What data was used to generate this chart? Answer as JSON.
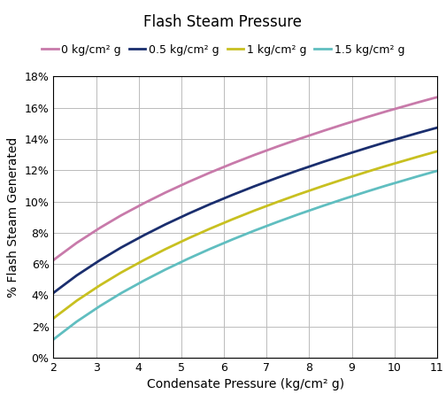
{
  "title": "Flash Steam Pressure",
  "xlabel": "Condensate Pressure (kg/cm² g)",
  "ylabel": "% Flash Steam Generated",
  "xlim": [
    2,
    11
  ],
  "ylim": [
    0,
    0.18
  ],
  "xticks": [
    2,
    3,
    4,
    5,
    6,
    7,
    8,
    9,
    10,
    11
  ],
  "yticks": [
    0.0,
    0.02,
    0.04,
    0.06,
    0.08,
    0.1,
    0.12,
    0.14,
    0.16,
    0.18
  ],
  "ytick_labels": [
    "0%",
    "2%",
    "4%",
    "6%",
    "8%",
    "10%",
    "12%",
    "14%",
    "16%",
    "18%"
  ],
  "series": [
    {
      "label": "0 kg/cm² g",
      "color": "#c87aaa",
      "flash_pressure_kgcm2g": 0.0
    },
    {
      "label": "0.5 kg/cm² g",
      "color": "#1a2e6e",
      "flash_pressure_kgcm2g": 0.5
    },
    {
      "label": "1 kg/cm² g",
      "color": "#c8c020",
      "flash_pressure_kgcm2g": 1.0
    },
    {
      "label": "1.5 kg/cm² g",
      "color": "#60bec0",
      "flash_pressure_kgcm2g": 1.5
    }
  ],
  "background_color": "#ffffff",
  "grid_color": "#bbbbbb",
  "title_fontsize": 12,
  "label_fontsize": 10,
  "tick_fontsize": 9,
  "legend_fontsize": 9,
  "line_width": 2.0
}
